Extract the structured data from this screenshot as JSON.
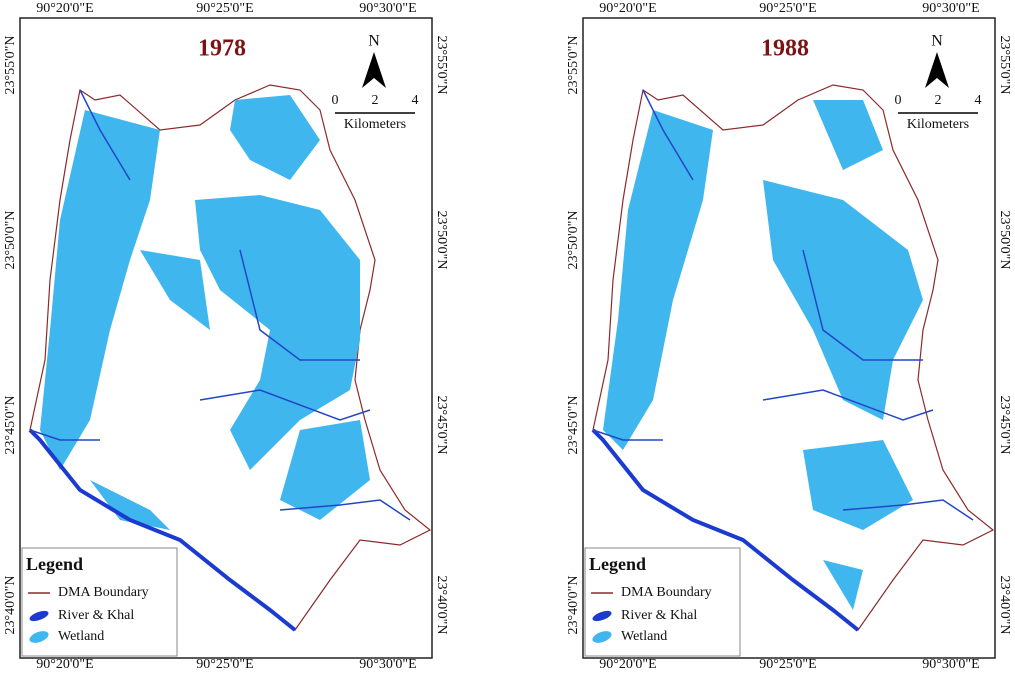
{
  "panels": [
    {
      "title": "1978",
      "top_labels": [
        "90°20'0\"E",
        "90°25'0\"E",
        "90°30'0\"E"
      ],
      "bottom_labels": [
        "90°20'0\"E",
        "90°25'0\"E",
        "90°30'0\"E"
      ],
      "left_labels": [
        "23°55'0\"N",
        "23°50'0\"N",
        "23°45'0\"N",
        "23°40'0\"N"
      ],
      "right_labels": [
        "23°55'0\"N",
        "23°50'0\"N",
        "23°45'0\"N",
        "23°40'0\"N"
      ],
      "north": "N",
      "scale": [
        "0",
        "2",
        "4"
      ],
      "scale_unit": "Kilometers",
      "legend": {
        "title": "Legend",
        "items": [
          "DMA Boundary",
          "River & Khal",
          "Wetland"
        ]
      }
    },
    {
      "title": "1988",
      "top_labels": [
        "90°20'0\"E",
        "90°25'0\"E",
        "90°30'0\"E"
      ],
      "bottom_labels": [
        "90°20'0\"E",
        "90°25'0\"E",
        "90°30'0\"E"
      ],
      "left_labels": [
        "23°55'0\"N",
        "23°50'0\"N",
        "23°45'0\"N",
        "23°40'0\"N"
      ],
      "right_labels": [
        "23°55'0\"N",
        "23°50'0\"N",
        "23°45'0\"N",
        "23°40'0\"N"
      ],
      "north": "N",
      "scale": [
        "0",
        "2",
        "4"
      ],
      "scale_unit": "Kilometers",
      "legend": {
        "title": "Legend",
        "items": [
          "DMA Boundary",
          "River & Khal",
          "Wetland"
        ]
      }
    }
  ]
}
